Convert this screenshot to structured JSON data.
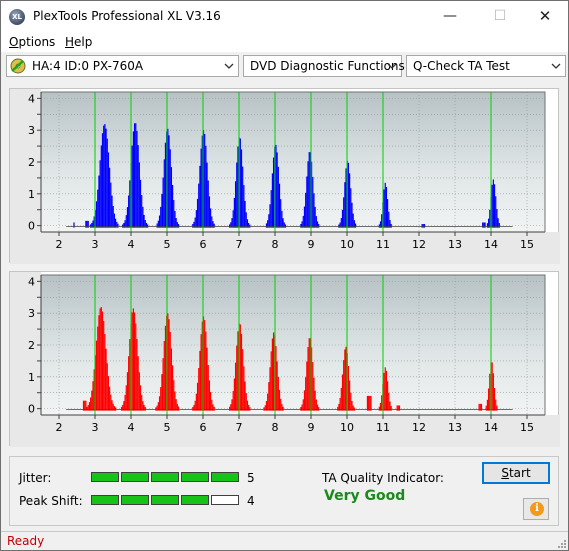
{
  "window": {
    "title": "PlexTools Professional XL V3.16",
    "icon_text": "XL",
    "controls": {
      "minimize": "—",
      "maximize": "☐",
      "close": "✕"
    }
  },
  "menu": {
    "options": {
      "first": "O",
      "rest": "ptions"
    },
    "help": {
      "first": "H",
      "rest": "elp"
    }
  },
  "toolbar": {
    "drive": "HA:4 ID:0  PX-760A",
    "function": "DVD Diagnostic Functions",
    "test": "Q-Check TA Test"
  },
  "results": {
    "jitter_label": "Jitter:",
    "jitter_value": "5",
    "jitter_level": 5,
    "peak_shift_label": "Peak Shift:",
    "peak_shift_value": "4",
    "peak_shift_level": 4,
    "meter_segments": 5,
    "quality_label": "TA Quality Indicator:",
    "quality_value": "Very Good",
    "quality_color": "#1b8a1b"
  },
  "buttons": {
    "start": {
      "first": "S",
      "rest": "tart"
    },
    "info_icon": "i"
  },
  "status": {
    "text": "Ready",
    "color": "#c00000"
  },
  "chart_data": [
    {
      "type": "area",
      "name": "top",
      "color": "#0000ff",
      "x_ticks": [
        2,
        3,
        4,
        5,
        6,
        7,
        8,
        9,
        10,
        11,
        12,
        13,
        14,
        15
      ],
      "y_ticks": [
        0,
        0.5,
        1,
        1.5,
        2,
        2.5,
        3,
        3.5,
        4
      ],
      "y_tick_labels": [
        "0",
        "",
        "1",
        "",
        "2",
        "",
        "3",
        "",
        "4"
      ],
      "xlim": [
        1.5,
        15.5
      ],
      "ylim": [
        -0.2,
        4.2
      ],
      "marker_lines": [
        3,
        4,
        5,
        6,
        7,
        8,
        9,
        10,
        11,
        14
      ],
      "marker_color": "#00d000",
      "peaks": [
        {
          "x": 3.25,
          "height": 3.2,
          "width": 0.25
        },
        {
          "x": 4.1,
          "height": 3.25,
          "width": 0.22
        },
        {
          "x": 5.0,
          "height": 3.05,
          "width": 0.2
        },
        {
          "x": 6.0,
          "height": 3.0,
          "width": 0.2
        },
        {
          "x": 7.0,
          "height": 2.8,
          "width": 0.18
        },
        {
          "x": 8.0,
          "height": 2.55,
          "width": 0.18
        },
        {
          "x": 8.95,
          "height": 2.35,
          "width": 0.17
        },
        {
          "x": 10.0,
          "height": 2.05,
          "width": 0.16
        },
        {
          "x": 11.05,
          "height": 1.35,
          "width": 0.12
        },
        {
          "x": 14.05,
          "height": 1.45,
          "width": 0.13
        }
      ],
      "baseline_noise": [
        [
          2.35,
          0.1
        ],
        [
          2.75,
          0.15
        ],
        [
          12.1,
          0.05
        ],
        [
          13.8,
          0.1
        ]
      ]
    },
    {
      "type": "area",
      "name": "bottom",
      "color": "#ff0000",
      "x_ticks": [
        2,
        3,
        4,
        5,
        6,
        7,
        8,
        9,
        10,
        11,
        12,
        13,
        14,
        15
      ],
      "y_ticks": [
        0,
        0.5,
        1,
        1.5,
        2,
        2.5,
        3,
        3.5,
        4
      ],
      "y_tick_labels": [
        "0",
        "",
        "1",
        "",
        "2",
        "",
        "3",
        "",
        "4"
      ],
      "xlim": [
        1.5,
        15.5
      ],
      "ylim": [
        -0.2,
        4.2
      ],
      "marker_lines": [
        3,
        4,
        5,
        6,
        7,
        8,
        9,
        10,
        11,
        14
      ],
      "marker_color": "#00d000",
      "peaks": [
        {
          "x": 3.15,
          "height": 3.2,
          "width": 0.26
        },
        {
          "x": 4.05,
          "height": 3.15,
          "width": 0.22
        },
        {
          "x": 5.0,
          "height": 3.0,
          "width": 0.21
        },
        {
          "x": 6.0,
          "height": 2.9,
          "width": 0.2
        },
        {
          "x": 7.0,
          "height": 2.7,
          "width": 0.19
        },
        {
          "x": 7.95,
          "height": 2.4,
          "width": 0.18
        },
        {
          "x": 8.95,
          "height": 2.25,
          "width": 0.17
        },
        {
          "x": 9.95,
          "height": 1.95,
          "width": 0.16
        },
        {
          "x": 11.05,
          "height": 1.3,
          "width": 0.13
        },
        {
          "x": 14.0,
          "height": 1.5,
          "width": 0.12
        }
      ],
      "baseline_noise": [
        [
          2.7,
          0.25
        ],
        [
          10.6,
          0.4
        ],
        [
          11.4,
          0.1
        ],
        [
          13.7,
          0.15
        ]
      ]
    }
  ]
}
